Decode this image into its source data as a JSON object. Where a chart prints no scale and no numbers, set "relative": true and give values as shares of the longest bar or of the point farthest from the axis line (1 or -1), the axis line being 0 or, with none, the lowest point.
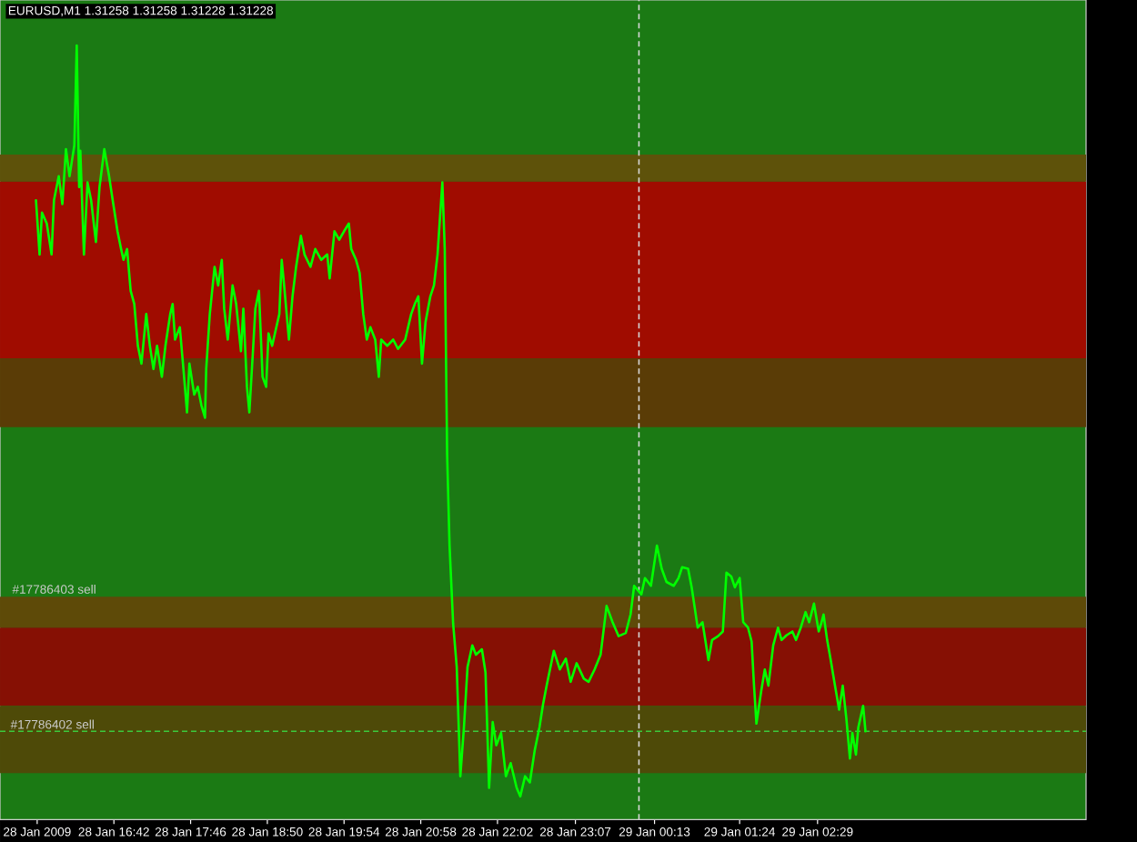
{
  "chart_data": {
    "type": "line",
    "title": "EURUSD,M1 1.31258 1.31258 1.31228 1.31228",
    "relative": true,
    "color": "#00ff00",
    "x": [
      "2009-01-28T15:37",
      "2009-01-28T15:40",
      "2009-01-28T15:42",
      "2009-01-28T15:46",
      "2009-01-28T15:50",
      "2009-01-28T15:52",
      "2009-01-28T15:56",
      "2009-01-28T15:59",
      "2009-01-28T16:02",
      "2009-01-28T16:05",
      "2009-01-28T16:09",
      "2009-01-28T16:11",
      "2009-01-28T16:13",
      "2009-01-28T16:14",
      "2009-01-28T16:17",
      "2009-01-28T16:20",
      "2009-01-28T16:23",
      "2009-01-28T16:27",
      "2009-01-28T16:30",
      "2009-01-28T16:34",
      "2009-01-28T16:38",
      "2009-01-28T16:41",
      "2009-01-28T16:45",
      "2009-01-28T16:48",
      "2009-01-28T16:50",
      "2009-01-28T16:53",
      "2009-01-28T16:56",
      "2009-01-28T16:59",
      "2009-01-28T17:02",
      "2009-01-28T17:05",
      "2009-01-28T17:09",
      "2009-01-28T17:12",
      "2009-01-28T17:15",
      "2009-01-28T17:18",
      "2009-01-28T17:22",
      "2009-01-28T17:25",
      "2009-01-28T17:29",
      "2009-01-28T17:31",
      "2009-01-28T17:33",
      "2009-01-28T17:37",
      "2009-01-28T17:40",
      "2009-01-28T17:43",
      "2009-01-28T17:45",
      "2009-01-28T17:49",
      "2009-01-28T17:52",
      "2009-01-28T17:55",
      "2009-01-28T17:58",
      "2009-01-28T17:59",
      "2009-01-28T18:02",
      "2009-01-28T18:06",
      "2009-01-28T18:09",
      "2009-01-28T18:12",
      "2009-01-28T18:14",
      "2009-01-28T18:17",
      "2009-01-28T18:21",
      "2009-01-28T18:24",
      "2009-01-28T18:28",
      "2009-01-28T18:30",
      "2009-01-28T18:33",
      "2009-01-28T18:35",
      "2009-01-28T18:38",
      "2009-01-28T18:40",
      "2009-01-28T18:43",
      "2009-01-28T18:46",
      "2009-01-28T18:49",
      "2009-01-28T18:51",
      "2009-01-28T18:54",
      "2009-01-28T19:00",
      "2009-01-28T19:02",
      "2009-01-28T19:04",
      "2009-01-28T19:08",
      "2009-01-28T19:11",
      "2009-01-28T19:14",
      "2009-01-28T19:18",
      "2009-01-28T19:21",
      "2009-01-28T19:26",
      "2009-01-28T19:30",
      "2009-01-28T19:35",
      "2009-01-28T19:40",
      "2009-01-28T19:42",
      "2009-01-28T19:46",
      "2009-01-28T19:50",
      "2009-01-28T19:54",
      "2009-01-28T19:58",
      "2009-01-28T20:00",
      "2009-01-28T20:04",
      "2009-01-28T20:07",
      "2009-01-28T20:10",
      "2009-01-28T20:13",
      "2009-01-28T20:16",
      "2009-01-28T20:20",
      "2009-01-28T20:23",
      "2009-01-28T20:25",
      "2009-01-28T20:30",
      "2009-01-28T20:35",
      "2009-01-28T20:39",
      "2009-01-28T20:45",
      "2009-01-28T20:50",
      "2009-01-28T20:53",
      "2009-01-28T20:56",
      "2009-01-28T20:59",
      "2009-01-28T21:02",
      "2009-01-28T21:06",
      "2009-01-28T21:09",
      "2009-01-28T21:12",
      "2009-01-28T21:14",
      "2009-01-28T21:16",
      "2009-01-28T21:18",
      "2009-01-28T21:20",
      "2009-01-28T21:22",
      "2009-01-28T21:25",
      "2009-01-28T21:28",
      "2009-01-28T21:31",
      "2009-01-28T21:34",
      "2009-01-28T21:37",
      "2009-01-28T21:41",
      "2009-01-28T21:44",
      "2009-01-28T21:49",
      "2009-01-28T21:52",
      "2009-01-28T21:55",
      "2009-01-28T21:58",
      "2009-01-28T22:01",
      "2009-01-28T22:05",
      "2009-01-28T22:09",
      "2009-01-28T22:13",
      "2009-01-28T22:18",
      "2009-01-28T22:21",
      "2009-01-28T22:25",
      "2009-01-28T22:29",
      "2009-01-28T22:33",
      "2009-01-28T22:37",
      "2009-01-28T22:40",
      "2009-01-28T22:43",
      "2009-01-28T22:49",
      "2009-01-28T22:54",
      "2009-01-28T22:59",
      "2009-01-28T23:03",
      "2009-01-28T23:08",
      "2009-01-28T23:14",
      "2009-01-28T23:18",
      "2009-01-28T23:23",
      "2009-01-28T23:28",
      "2009-01-28T23:33",
      "2009-01-28T23:38",
      "2009-01-28T23:43",
      "2009-01-28T23:49",
      "2009-01-28T23:53",
      "2009-01-28T23:56",
      "2009-01-29T00:02",
      "2009-01-29T00:05",
      "2009-01-29T00:10",
      "2009-01-29T00:15",
      "2009-01-29T00:19",
      "2009-01-29T00:23",
      "2009-01-29T00:29",
      "2009-01-29T00:33",
      "2009-01-29T00:36",
      "2009-01-29T00:41",
      "2009-01-29T00:44",
      "2009-01-29T00:49",
      "2009-01-29T00:53",
      "2009-01-29T00:58",
      "2009-01-29T01:01",
      "2009-01-29T01:06",
      "2009-01-29T01:10",
      "2009-01-29T01:13",
      "2009-01-29T01:17",
      "2009-01-29T01:20",
      "2009-01-29T01:24",
      "2009-01-29T01:27",
      "2009-01-29T01:31",
      "2009-01-29T01:34",
      "2009-01-29T01:36",
      "2009-01-29T01:38",
      "2009-01-29T01:42",
      "2009-01-29T01:45",
      "2009-01-29T01:48",
      "2009-01-29T01:52",
      "2009-01-29T01:56",
      "2009-01-29T01:59",
      "2009-01-29T02:03",
      "2009-01-29T02:08",
      "2009-01-29T02:11",
      "2009-01-29T02:15",
      "2009-01-29T02:19",
      "2009-01-29T02:22",
      "2009-01-29T02:26",
      "2009-01-29T02:30",
      "2009-01-29T02:32",
      "2009-01-29T02:34",
      "2009-01-29T02:37",
      "2009-01-29T02:40",
      "2009-01-29T02:43",
      "2009-01-29T02:47",
      "2009-01-29T02:50",
      "2009-01-29T02:53",
      "2009-01-29T02:56",
      "2009-01-29T02:58",
      "2009-01-29T03:01",
      "2009-01-29T03:03",
      "2009-01-29T03:07",
      "2009-01-29T03:09"
    ],
    "values": [
      0.8,
      0.73,
      0.784,
      0.77,
      0.73,
      0.8,
      0.831,
      0.795,
      0.866,
      0.831,
      0.871,
      1.0,
      0.817,
      0.864,
      0.73,
      0.823,
      0.8,
      0.746,
      0.817,
      0.866,
      0.831,
      0.8,
      0.76,
      0.737,
      0.723,
      0.737,
      0.683,
      0.666,
      0.612,
      0.589,
      0.653,
      0.612,
      0.582,
      0.612,
      0.572,
      0.612,
      0.653,
      0.666,
      0.62,
      0.636,
      0.582,
      0.526,
      0.589,
      0.549,
      0.559,
      0.535,
      0.519,
      0.582,
      0.653,
      0.714,
      0.69,
      0.723,
      0.66,
      0.62,
      0.69,
      0.666,
      0.605,
      0.66,
      0.559,
      0.526,
      0.605,
      0.66,
      0.683,
      0.572,
      0.559,
      0.628,
      0.612,
      0.653,
      0.723,
      0.69,
      0.62,
      0.676,
      0.714,
      0.754,
      0.73,
      0.714,
      0.737,
      0.723,
      0.73,
      0.699,
      0.76,
      0.749,
      0.76,
      0.77,
      0.737,
      0.723,
      0.706,
      0.653,
      0.62,
      0.636,
      0.62,
      0.572,
      0.62,
      0.612,
      0.62,
      0.608,
      0.62,
      0.653,
      0.666,
      0.676,
      0.589,
      0.643,
      0.676,
      0.69,
      0.73,
      0.777,
      0.823,
      0.737,
      0.471,
      0.354,
      0.253,
      0.197,
      0.056,
      0.119,
      0.197,
      0.225,
      0.213,
      0.22,
      0.19,
      0.041,
      0.126,
      0.096,
      0.112,
      0.056,
      0.073,
      0.041,
      0.03,
      0.056,
      0.048,
      0.089,
      0.119,
      0.149,
      0.173,
      0.218,
      0.194,
      0.208,
      0.178,
      0.202,
      0.182,
      0.178,
      0.194,
      0.213,
      0.276,
      0.255,
      0.237,
      0.241,
      0.265,
      0.302,
      0.291,
      0.312,
      0.302,
      0.354,
      0.324,
      0.307,
      0.302,
      0.312,
      0.326,
      0.324,
      0.3,
      0.248,
      0.255,
      0.206,
      0.232,
      0.237,
      0.243,
      0.319,
      0.314,
      0.3,
      0.312,
      0.255,
      0.248,
      0.23,
      0.173,
      0.124,
      0.166,
      0.194,
      0.173,
      0.225,
      0.248,
      0.232,
      0.238,
      0.243,
      0.232,
      0.248,
      0.268,
      0.255,
      0.279,
      0.243,
      0.253,
      0.265,
      0.232,
      0.206,
      0.178,
      0.142,
      0.173,
      0.131,
      0.079,
      0.112,
      0.084,
      0.119,
      0.147,
      0.114
    ],
    "xlim": [
      "2009-01-28T15:07",
      "2009-01-29T06:13"
    ],
    "xticks": [
      {
        "value": "2009-01-28T15:38",
        "label": "28 Jan 2009"
      },
      {
        "value": "2009-01-28T16:42",
        "label": "28 Jan 16:42"
      },
      {
        "value": "2009-01-28T17:46",
        "label": "28 Jan 17:46"
      },
      {
        "value": "2009-01-28T18:50",
        "label": "28 Jan 18:50"
      },
      {
        "value": "2009-01-28T19:54",
        "label": "28 Jan 19:54"
      },
      {
        "value": "2009-01-28T20:58",
        "label": "28 Jan 20:58"
      },
      {
        "value": "2009-01-28T22:02",
        "label": "28 Jan 22:02"
      },
      {
        "value": "2009-01-28T23:07",
        "label": "28 Jan 23:07"
      },
      {
        "value": "2009-01-29T00:13",
        "label": "29 Jan 00:13"
      },
      {
        "value": "2009-01-29T01:24",
        "label": "29 Jan 01:24"
      },
      {
        "value": "2009-01-29T02:29",
        "label": "29 Jan 02:29"
      }
    ],
    "bands": [
      {
        "axis": "y",
        "from": 0.824,
        "to": 0.859,
        "color": "#5e520a"
      },
      {
        "axis": "y",
        "from": 0.596,
        "to": 0.824,
        "color": "#a00c00"
      },
      {
        "axis": "y",
        "from": 0.507,
        "to": 0.596,
        "color": "#5a3c06"
      },
      {
        "axis": "y",
        "from": 0.248,
        "to": 0.288,
        "color": "#5e4a08"
      },
      {
        "axis": "y",
        "from": 0.147,
        "to": 0.248,
        "color": "#861004"
      },
      {
        "axis": "y",
        "from": 0.06,
        "to": 0.147,
        "color": "#4e4a08"
      }
    ],
    "ref_lines": [
      {
        "axis": "x",
        "value": "2009-01-29T00:00",
        "color": "#d8d8d8",
        "line_style": "dashed"
      },
      {
        "axis": "y",
        "value": 0.114,
        "label": "#17786402 sell",
        "color": "#3cc83c",
        "line_style": "dashed"
      }
    ],
    "annotations": [
      {
        "text": "#17786403 sell",
        "x": "2009-01-28T15:16",
        "y": 0.29
      }
    ]
  }
}
